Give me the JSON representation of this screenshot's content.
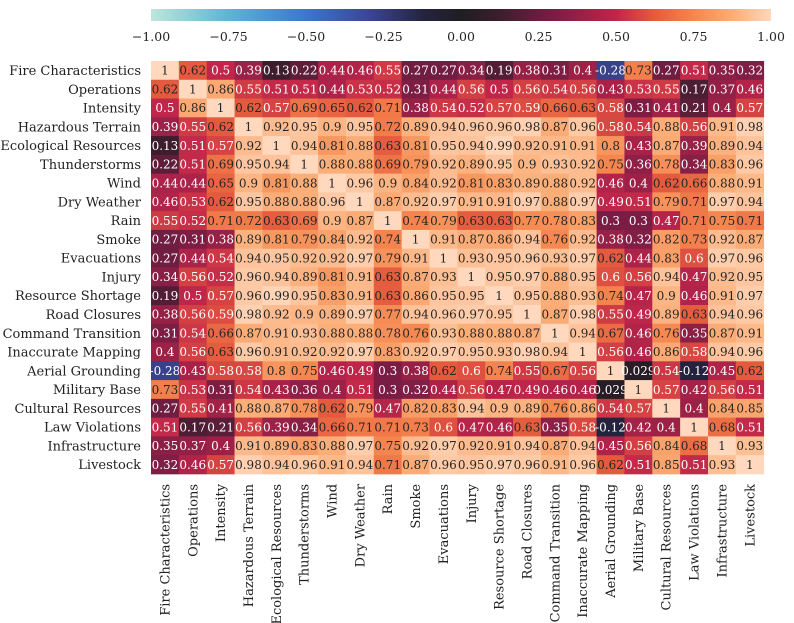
{
  "chart_data": {
    "type": "heatmap",
    "title": "",
    "xlabel": "",
    "ylabel": "",
    "variables": [
      "Fire Characteristics",
      "Operations",
      "Intensity",
      "Hazardous Terrain",
      "Ecological Resources",
      "Thunderstorms",
      "Wind",
      "Dry Weather",
      "Rain",
      "Smoke",
      "Evacuations",
      "Injury",
      "Resource Shortage",
      "Road Closures",
      "Command Transition",
      "Inaccurate Mapping",
      "Aerial Grounding",
      "Military Base",
      "Cultural Resources",
      "Law Violations",
      "Infrastructure",
      "Livestock"
    ],
    "matrix": [
      [
        "1",
        "0.62",
        "0.5",
        "0.39",
        "0.13",
        "0.22",
        "0.44",
        "0.46",
        "0.55",
        "0.27",
        "0.27",
        "0.34",
        "0.19",
        "0.38",
        "0.31",
        "0.4",
        "-0.28",
        "0.73",
        "0.27",
        "0.51",
        "0.35",
        "0.32"
      ],
      [
        "0.62",
        "1",
        "0.86",
        "0.55",
        "0.51",
        "0.51",
        "0.44",
        "0.53",
        "0.52",
        "0.31",
        "0.44",
        "0.56",
        "0.5",
        "0.56",
        "0.54",
        "0.56",
        "0.43",
        "0.53",
        "0.55",
        "0.17",
        "0.37",
        "0.46"
      ],
      [
        "0.5",
        "0.86",
        "1",
        "0.62",
        "0.57",
        "0.69",
        "0.65",
        "0.62",
        "0.71",
        "0.38",
        "0.54",
        "0.52",
        "0.57",
        "0.59",
        "0.66",
        "0.63",
        "0.58",
        "0.31",
        "0.41",
        "0.21",
        "0.4",
        "0.57"
      ],
      [
        "0.39",
        "0.55",
        "0.62",
        "1",
        "0.92",
        "0.95",
        "0.9",
        "0.95",
        "0.72",
        "0.89",
        "0.94",
        "0.96",
        "0.96",
        "0.98",
        "0.87",
        "0.96",
        "0.58",
        "0.54",
        "0.88",
        "0.56",
        "0.91",
        "0.98"
      ],
      [
        "0.13",
        "0.51",
        "0.57",
        "0.92",
        "1",
        "0.94",
        "0.81",
        "0.88",
        "0.63",
        "0.81",
        "0.95",
        "0.94",
        "0.99",
        "0.92",
        "0.91",
        "0.91",
        "0.8",
        "0.43",
        "0.87",
        "0.39",
        "0.89",
        "0.94"
      ],
      [
        "0.22",
        "0.51",
        "0.69",
        "0.95",
        "0.94",
        "1",
        "0.88",
        "0.88",
        "0.69",
        "0.79",
        "0.92",
        "0.89",
        "0.95",
        "0.9",
        "0.93",
        "0.92",
        "0.75",
        "0.36",
        "0.78",
        "0.34",
        "0.83",
        "0.96"
      ],
      [
        "0.44",
        "0.44",
        "0.65",
        "0.9",
        "0.81",
        "0.88",
        "1",
        "0.96",
        "0.9",
        "0.84",
        "0.92",
        "0.81",
        "0.83",
        "0.89",
        "0.88",
        "0.92",
        "0.46",
        "0.4",
        "0.62",
        "0.66",
        "0.88",
        "0.91"
      ],
      [
        "0.46",
        "0.53",
        "0.62",
        "0.95",
        "0.88",
        "0.88",
        "0.96",
        "1",
        "0.87",
        "0.92",
        "0.97",
        "0.91",
        "0.91",
        "0.97",
        "0.88",
        "0.97",
        "0.49",
        "0.51",
        "0.79",
        "0.71",
        "0.97",
        "0.94"
      ],
      [
        "0.55",
        "0.52",
        "0.71",
        "0.72",
        "0.63",
        "0.69",
        "0.9",
        "0.87",
        "1",
        "0.74",
        "0.79",
        "0.63",
        "0.63",
        "0.77",
        "0.78",
        "0.83",
        "0.3",
        "0.3",
        "0.47",
        "0.71",
        "0.75",
        "0.71"
      ],
      [
        "0.27",
        "0.31",
        "0.38",
        "0.89",
        "0.81",
        "0.79",
        "0.84",
        "0.92",
        "0.74",
        "1",
        "0.91",
        "0.87",
        "0.86",
        "0.94",
        "0.76",
        "0.92",
        "0.38",
        "0.32",
        "0.82",
        "0.73",
        "0.92",
        "0.87"
      ],
      [
        "0.27",
        "0.44",
        "0.54",
        "0.94",
        "0.95",
        "0.92",
        "0.92",
        "0.97",
        "0.79",
        "0.91",
        "1",
        "0.93",
        "0.95",
        "0.96",
        "0.93",
        "0.97",
        "0.62",
        "0.44",
        "0.83",
        "0.6",
        "0.97",
        "0.96"
      ],
      [
        "0.34",
        "0.56",
        "0.52",
        "0.96",
        "0.94",
        "0.89",
        "0.81",
        "0.91",
        "0.63",
        "0.87",
        "0.93",
        "1",
        "0.95",
        "0.97",
        "0.88",
        "0.95",
        "0.6",
        "0.56",
        "0.94",
        "0.47",
        "0.92",
        "0.95"
      ],
      [
        "0.19",
        "0.5",
        "0.57",
        "0.96",
        "0.99",
        "0.95",
        "0.83",
        "0.91",
        "0.63",
        "0.86",
        "0.95",
        "0.95",
        "1",
        "0.95",
        "0.88",
        "0.93",
        "0.74",
        "0.47",
        "0.9",
        "0.46",
        "0.91",
        "0.97"
      ],
      [
        "0.38",
        "0.56",
        "0.59",
        "0.98",
        "0.92",
        "0.9",
        "0.89",
        "0.97",
        "0.77",
        "0.94",
        "0.96",
        "0.97",
        "0.95",
        "1",
        "0.87",
        "0.98",
        "0.55",
        "0.49",
        "0.89",
        "0.63",
        "0.94",
        "0.96"
      ],
      [
        "0.31",
        "0.54",
        "0.66",
        "0.87",
        "0.91",
        "0.93",
        "0.88",
        "0.88",
        "0.78",
        "0.76",
        "0.93",
        "0.88",
        "0.88",
        "0.87",
        "1",
        "0.94",
        "0.67",
        "0.46",
        "0.76",
        "0.35",
        "0.87",
        "0.91"
      ],
      [
        "0.4",
        "0.56",
        "0.63",
        "0.96",
        "0.91",
        "0.92",
        "0.92",
        "0.97",
        "0.83",
        "0.92",
        "0.97",
        "0.95",
        "0.93",
        "0.98",
        "0.94",
        "1",
        "0.56",
        "0.46",
        "0.86",
        "0.58",
        "0.94",
        "0.96"
      ],
      [
        "-0.28",
        "0.43",
        "0.58",
        "0.58",
        "0.8",
        "0.75",
        "0.46",
        "0.49",
        "0.3",
        "0.38",
        "0.62",
        "0.6",
        "0.74",
        "0.55",
        "0.67",
        "0.56",
        "1",
        "0.029",
        "0.54",
        "-0.12",
        "0.45",
        "0.62"
      ],
      [
        "0.73",
        "0.53",
        "0.31",
        "0.54",
        "0.43",
        "0.36",
        "0.4",
        "0.51",
        "0.3",
        "0.32",
        "0.44",
        "0.56",
        "0.47",
        "0.49",
        "0.46",
        "0.46",
        "0.029",
        "1",
        "0.57",
        "0.42",
        "0.56",
        "0.51"
      ],
      [
        "0.27",
        "0.55",
        "0.41",
        "0.88",
        "0.87",
        "0.78",
        "0.62",
        "0.79",
        "0.47",
        "0.82",
        "0.83",
        "0.94",
        "0.9",
        "0.89",
        "0.76",
        "0.86",
        "0.54",
        "0.57",
        "1",
        "0.4",
        "0.84",
        "0.85"
      ],
      [
        "0.51",
        "0.17",
        "0.21",
        "0.56",
        "0.39",
        "0.34",
        "0.66",
        "0.71",
        "0.71",
        "0.73",
        "0.6",
        "0.47",
        "0.46",
        "0.63",
        "0.35",
        "0.58",
        "-0.12",
        "0.42",
        "0.4",
        "1",
        "0.68",
        "0.51"
      ],
      [
        "0.35",
        "0.37",
        "0.4",
        "0.91",
        "0.89",
        "0.83",
        "0.88",
        "0.97",
        "0.75",
        "0.92",
        "0.97",
        "0.92",
        "0.91",
        "0.94",
        "0.87",
        "0.94",
        "0.45",
        "0.56",
        "0.84",
        "0.68",
        "1",
        "0.93"
      ],
      [
        "0.32",
        "0.46",
        "0.57",
        "0.98",
        "0.94",
        "0.96",
        "0.91",
        "0.94",
        "0.71",
        "0.87",
        "0.96",
        "0.95",
        "0.97",
        "0.96",
        "0.91",
        "0.96",
        "0.62",
        "0.51",
        "0.85",
        "0.51",
        "0.93",
        "1"
      ]
    ],
    "colorbar": {
      "vmin": -1.0,
      "vmax": 1.0,
      "orientation": "horizontal",
      "position": "top",
      "ticks": [
        "−1.00",
        "−0.75",
        "−0.50",
        "−0.25",
        "0.00",
        "0.25",
        "0.50",
        "0.75",
        "1.00"
      ],
      "tick_values": [
        -1.0,
        -0.75,
        -0.5,
        -0.25,
        0.0,
        0.25,
        0.5,
        0.75,
        1.0
      ],
      "colormap": "icefire",
      "colormap_stops": [
        [
          -1.0,
          "#bde7db"
        ],
        [
          -0.75,
          "#5fb4d3"
        ],
        [
          -0.5,
          "#3d76cc"
        ],
        [
          -0.3,
          "#3b4695"
        ],
        [
          -0.12,
          "#24233e"
        ],
        [
          0.0,
          "#1f1e21"
        ],
        [
          0.12,
          "#3a1e2c"
        ],
        [
          0.3,
          "#7a1d44"
        ],
        [
          0.5,
          "#c0254a"
        ],
        [
          0.62,
          "#e45a3e"
        ],
        [
          0.75,
          "#f5864e"
        ],
        [
          0.88,
          "#fcae78"
        ],
        [
          1.0,
          "#ffd8bd"
        ]
      ]
    }
  }
}
